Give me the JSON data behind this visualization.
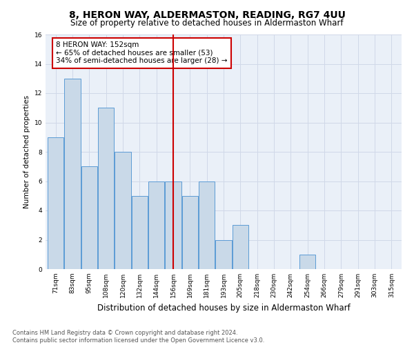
{
  "title": "8, HERON WAY, ALDERMASTON, READING, RG7 4UU",
  "subtitle": "Size of property relative to detached houses in Aldermaston Wharf",
  "xlabel": "Distribution of detached houses by size in Aldermaston Wharf",
  "ylabel": "Number of detached properties",
  "bar_labels": [
    "71sqm",
    "83sqm",
    "95sqm",
    "108sqm",
    "120sqm",
    "132sqm",
    "144sqm",
    "156sqm",
    "169sqm",
    "181sqm",
    "193sqm",
    "205sqm",
    "218sqm",
    "230sqm",
    "242sqm",
    "254sqm",
    "266sqm",
    "279sqm",
    "291sqm",
    "303sqm",
    "315sqm"
  ],
  "bar_values": [
    9,
    13,
    7,
    11,
    8,
    5,
    6,
    6,
    5,
    6,
    2,
    3,
    0,
    0,
    0,
    1,
    0,
    0,
    0,
    0,
    0
  ],
  "bar_color": "#c9d9e8",
  "bar_edgecolor": "#5b9bd5",
  "vline_x": 7,
  "vline_color": "#cc0000",
  "annotation_text": "8 HERON WAY: 152sqm\n← 65% of detached houses are smaller (53)\n34% of semi-detached houses are larger (28) →",
  "annotation_box_edgecolor": "#cc0000",
  "ylim": [
    0,
    16
  ],
  "yticks": [
    0,
    2,
    4,
    6,
    8,
    10,
    12,
    14,
    16
  ],
  "grid_color": "#d0d8e8",
  "background_color": "#eaf0f8",
  "footnote": "Contains HM Land Registry data © Crown copyright and database right 2024.\nContains public sector information licensed under the Open Government Licence v3.0.",
  "title_fontsize": 10,
  "subtitle_fontsize": 8.5,
  "xlabel_fontsize": 8.5,
  "ylabel_fontsize": 7.5,
  "tick_fontsize": 6.5,
  "annotation_fontsize": 7.5,
  "footnote_fontsize": 6
}
